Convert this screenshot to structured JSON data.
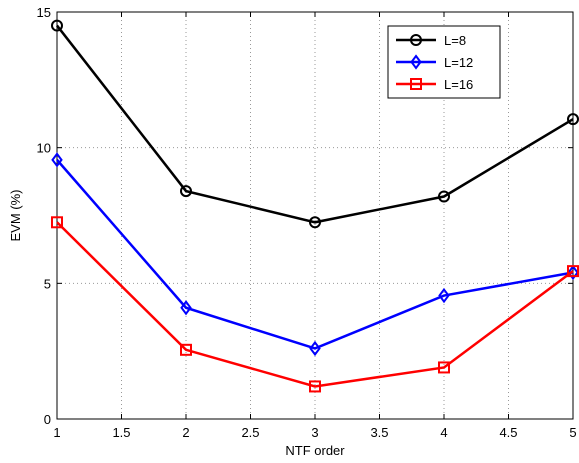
{
  "chart_data": {
    "type": "line",
    "xlabel": "NTF order",
    "ylabel": "EVM (%)",
    "xlim": [
      1,
      5
    ],
    "ylim": [
      0,
      15
    ],
    "grid": true,
    "legend_position": "top-right",
    "x": [
      1,
      2,
      3,
      4,
      5
    ],
    "x_ticks": [
      "1",
      "1.5",
      "2",
      "2.5",
      "3",
      "3.5",
      "4",
      "4.5",
      "5"
    ],
    "y_ticks": [
      "0",
      "5",
      "10",
      "15"
    ],
    "series": [
      {
        "name": "L=8",
        "color": "#000000",
        "marker": "circle",
        "values": [
          14.5,
          8.4,
          7.25,
          8.2,
          11.05
        ]
      },
      {
        "name": "L=12",
        "color": "#0000ff",
        "marker": "diamond",
        "values": [
          9.55,
          4.1,
          2.6,
          4.55,
          5.4
        ]
      },
      {
        "name": "L=16",
        "color": "#ff0000",
        "marker": "square",
        "values": [
          7.25,
          2.55,
          1.2,
          1.9,
          5.45
        ]
      }
    ]
  }
}
